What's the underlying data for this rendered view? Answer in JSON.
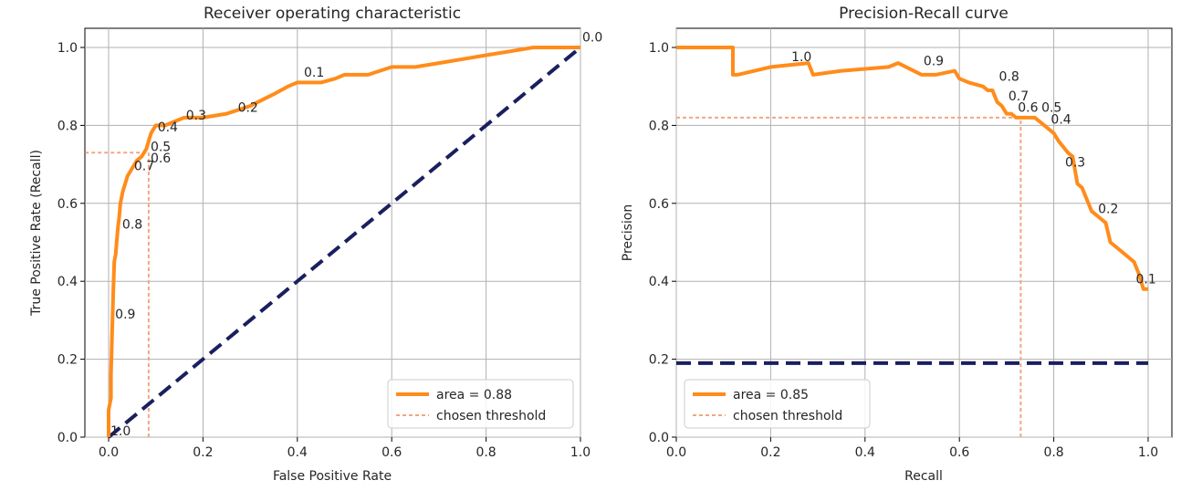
{
  "chart_data": [
    {
      "type": "line",
      "title": "Receiver operating characteristic",
      "xlabel": "False Positive Rate",
      "ylabel": "True Positive Rate (Recall)",
      "xlim": [
        0.0,
        1.0
      ],
      "ylim": [
        0.0,
        1.0
      ],
      "x_ticks": [
        "0.0",
        "0.2",
        "0.4",
        "0.6",
        "0.8",
        "1.0"
      ],
      "y_ticks": [
        "0.0",
        "0.2",
        "0.4",
        "0.6",
        "0.8",
        "1.0"
      ],
      "grid": true,
      "legend_position": "lower-right",
      "series": [
        {
          "name": "area = 0.88",
          "color": "#ff8c1a",
          "style": "solid",
          "x": [
            0.0,
            0.0,
            0.005,
            0.005,
            0.008,
            0.01,
            0.012,
            0.015,
            0.017,
            0.02,
            0.022,
            0.025,
            0.03,
            0.035,
            0.04,
            0.045,
            0.05,
            0.06,
            0.07,
            0.08,
            0.085,
            0.09,
            0.1,
            0.12,
            0.16,
            0.2,
            0.25,
            0.3,
            0.35,
            0.38,
            0.4,
            0.45,
            0.48,
            0.5,
            0.55,
            0.6,
            0.65,
            0.7,
            0.75,
            0.8,
            0.85,
            0.9,
            0.95,
            1.0
          ],
          "y": [
            0.0,
            0.07,
            0.1,
            0.16,
            0.29,
            0.38,
            0.45,
            0.47,
            0.5,
            0.54,
            0.56,
            0.6,
            0.63,
            0.65,
            0.67,
            0.68,
            0.69,
            0.71,
            0.72,
            0.74,
            0.76,
            0.78,
            0.8,
            0.8,
            0.82,
            0.82,
            0.83,
            0.85,
            0.88,
            0.9,
            0.91,
            0.91,
            0.92,
            0.93,
            0.93,
            0.95,
            0.95,
            0.96,
            0.97,
            0.98,
            0.99,
            1.0,
            1.0,
            1.0
          ]
        },
        {
          "name": "",
          "color": "#1a1f5e",
          "style": "dashed",
          "x": [
            0.0,
            1.0
          ],
          "y": [
            0.0,
            1.0
          ]
        },
        {
          "name": "chosen threshold",
          "color": "#f4a582",
          "style": "dotted",
          "x": [
            0.085,
            0.085
          ],
          "y": [
            0.0,
            0.73
          ]
        },
        {
          "name": "",
          "color": "#f4a582",
          "style": "dotted",
          "x": [
            -0.05,
            0.085
          ],
          "y": [
            0.73,
            0.73
          ]
        }
      ],
      "point_labels": [
        {
          "text": "1.0",
          "x": 0.0,
          "y": 0.0
        },
        {
          "text": "0.9",
          "x": 0.01,
          "y": 0.3
        },
        {
          "text": "0.8",
          "x": 0.025,
          "y": 0.53
        },
        {
          "text": "0.7",
          "x": 0.05,
          "y": 0.68
        },
        {
          "text": "0.6",
          "x": 0.085,
          "y": 0.7
        },
        {
          "text": "0.5",
          "x": 0.085,
          "y": 0.73
        },
        {
          "text": "0.4",
          "x": 0.1,
          "y": 0.78
        },
        {
          "text": "0.3",
          "x": 0.16,
          "y": 0.81
        },
        {
          "text": "0.2",
          "x": 0.27,
          "y": 0.83
        },
        {
          "text": "0.1",
          "x": 0.41,
          "y": 0.92
        },
        {
          "text": "0.0",
          "x": 1.0,
          "y": 1.01
        }
      ]
    },
    {
      "type": "line",
      "title": "Precision-Recall curve",
      "xlabel": "Recall",
      "ylabel": "Precision",
      "xlim": [
        0.0,
        1.0
      ],
      "ylim": [
        0.0,
        1.0
      ],
      "x_ticks": [
        "0.0",
        "0.2",
        "0.4",
        "0.6",
        "0.8",
        "1.0"
      ],
      "y_ticks": [
        "0.0",
        "0.2",
        "0.4",
        "0.6",
        "0.8",
        "1.0"
      ],
      "grid": true,
      "legend_position": "lower-left",
      "series": [
        {
          "name": "area = 0.85",
          "color": "#ff8c1a",
          "style": "solid",
          "x": [
            0.0,
            0.12,
            0.12,
            0.13,
            0.2,
            0.28,
            0.29,
            0.35,
            0.45,
            0.47,
            0.52,
            0.55,
            0.59,
            0.6,
            0.62,
            0.65,
            0.66,
            0.67,
            0.68,
            0.69,
            0.7,
            0.71,
            0.72,
            0.73,
            0.76,
            0.78,
            0.8,
            0.81,
            0.83,
            0.84,
            0.85,
            0.86,
            0.87,
            0.88,
            0.9,
            0.91,
            0.92,
            0.94,
            0.95,
            0.96,
            0.97,
            0.98,
            0.99,
            1.0
          ],
          "y": [
            1.0,
            1.0,
            0.93,
            0.93,
            0.95,
            0.96,
            0.93,
            0.94,
            0.95,
            0.96,
            0.93,
            0.93,
            0.94,
            0.92,
            0.91,
            0.9,
            0.89,
            0.89,
            0.86,
            0.85,
            0.83,
            0.83,
            0.82,
            0.82,
            0.82,
            0.8,
            0.78,
            0.76,
            0.73,
            0.72,
            0.65,
            0.64,
            0.61,
            0.58,
            0.56,
            0.55,
            0.5,
            0.48,
            0.47,
            0.46,
            0.45,
            0.42,
            0.38,
            0.38
          ]
        },
        {
          "name": "",
          "color": "#1a1f5e",
          "style": "dashed",
          "x": [
            0.0,
            1.0
          ],
          "y": [
            0.19,
            0.19
          ]
        },
        {
          "name": "chosen threshold",
          "color": "#f4a582",
          "style": "dotted",
          "x": [
            0.73,
            0.73
          ],
          "y": [
            0.0,
            0.82
          ]
        },
        {
          "name": "",
          "color": "#f4a582",
          "style": "dotted",
          "x": [
            0.0,
            0.73
          ],
          "y": [
            0.82,
            0.82
          ]
        }
      ],
      "point_labels": [
        {
          "text": "1.0",
          "x": 0.24,
          "y": 0.96
        },
        {
          "text": "0.9",
          "x": 0.52,
          "y": 0.95
        },
        {
          "text": "0.8",
          "x": 0.68,
          "y": 0.91
        },
        {
          "text": "0.7",
          "x": 0.7,
          "y": 0.86
        },
        {
          "text": "0.6",
          "x": 0.72,
          "y": 0.83
        },
        {
          "text": "0.5",
          "x": 0.77,
          "y": 0.83
        },
        {
          "text": "0.4",
          "x": 0.79,
          "y": 0.8
        },
        {
          "text": "0.3",
          "x": 0.82,
          "y": 0.69
        },
        {
          "text": "0.2",
          "x": 0.89,
          "y": 0.57
        },
        {
          "text": "0.1",
          "x": 0.97,
          "y": 0.39
        }
      ]
    }
  ]
}
